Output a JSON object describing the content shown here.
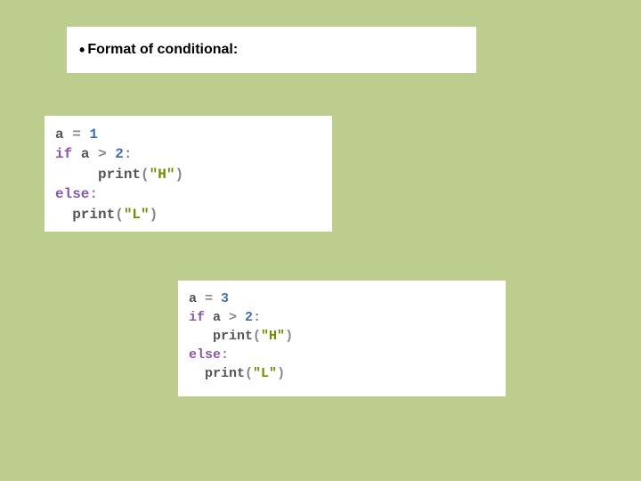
{
  "header": {
    "bullet": "•",
    "title": "Format of conditional:"
  },
  "codeBlock1": {
    "background": "#ffffff",
    "fontFamily": "Courier New",
    "fontSize": 16,
    "lines": [
      {
        "indent": "",
        "tokens": [
          {
            "text": "a ",
            "cls": "tok-var"
          },
          {
            "text": "= ",
            "cls": "tok-op"
          },
          {
            "text": "1",
            "cls": "tok-num"
          }
        ]
      },
      {
        "indent": "",
        "tokens": [
          {
            "text": "if ",
            "cls": "tok-kw"
          },
          {
            "text": "a ",
            "cls": "tok-var"
          },
          {
            "text": "> ",
            "cls": "tok-op"
          },
          {
            "text": "2",
            "cls": "tok-num"
          },
          {
            "text": ":",
            "cls": "tok-op"
          }
        ]
      },
      {
        "indent": "     ",
        "tokens": [
          {
            "text": "print",
            "cls": "tok-func"
          },
          {
            "text": "(",
            "cls": "tok-paren"
          },
          {
            "text": "\"H\"",
            "cls": "tok-str"
          },
          {
            "text": ")",
            "cls": "tok-paren"
          }
        ]
      },
      {
        "indent": "",
        "tokens": [
          {
            "text": "else",
            "cls": "tok-kw"
          },
          {
            "text": ":",
            "cls": "tok-op"
          }
        ]
      },
      {
        "indent": "  ",
        "tokens": [
          {
            "text": "print",
            "cls": "tok-func"
          },
          {
            "text": "(",
            "cls": "tok-paren"
          },
          {
            "text": "\"L\"",
            "cls": "tok-str"
          },
          {
            "text": ")",
            "cls": "tok-paren"
          }
        ]
      }
    ]
  },
  "codeBlock2": {
    "background": "#ffffff",
    "fontFamily": "Courier New",
    "fontSize": 15,
    "lines": [
      {
        "indent": "",
        "tokens": [
          {
            "text": "a ",
            "cls": "tok-var"
          },
          {
            "text": "= ",
            "cls": "tok-op"
          },
          {
            "text": "3",
            "cls": "tok-num"
          }
        ]
      },
      {
        "indent": "",
        "tokens": [
          {
            "text": "if ",
            "cls": "tok-kw"
          },
          {
            "text": "a ",
            "cls": "tok-var"
          },
          {
            "text": "> ",
            "cls": "tok-op"
          },
          {
            "text": "2",
            "cls": "tok-num"
          },
          {
            "text": ":",
            "cls": "tok-op"
          }
        ]
      },
      {
        "indent": "   ",
        "tokens": [
          {
            "text": "print",
            "cls": "tok-func"
          },
          {
            "text": "(",
            "cls": "tok-paren"
          },
          {
            "text": "\"H\"",
            "cls": "tok-str"
          },
          {
            "text": ")",
            "cls": "tok-paren"
          }
        ]
      },
      {
        "indent": "",
        "tokens": [
          {
            "text": "else",
            "cls": "tok-kw"
          },
          {
            "text": ":",
            "cls": "tok-op"
          }
        ]
      },
      {
        "indent": "  ",
        "tokens": [
          {
            "text": "print",
            "cls": "tok-func"
          },
          {
            "text": "(",
            "cls": "tok-paren"
          },
          {
            "text": "\"L\"",
            "cls": "tok-str"
          },
          {
            "text": ")",
            "cls": "tok-paren"
          }
        ]
      }
    ]
  },
  "colors": {
    "pageBackground": "#bccd8e",
    "boxBackground": "#ffffff",
    "keyword": "#8959a8",
    "number": "#4271ae",
    "string": "#718c00",
    "operator": "#888888",
    "variable": "#555555",
    "function": "#555555",
    "paren": "#888888"
  }
}
